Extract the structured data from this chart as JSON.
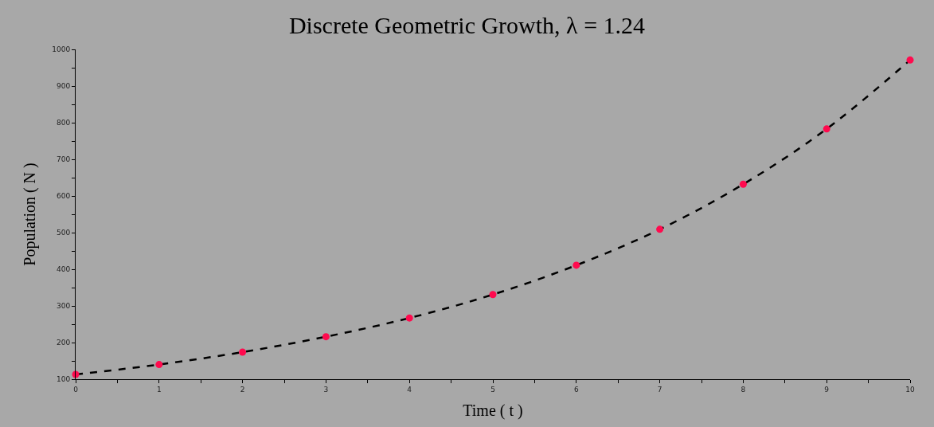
{
  "chart_data": {
    "type": "scatter",
    "title": "Discrete Geometric Growth, λ = 1.24",
    "xlabel": "Time ( t )",
    "ylabel": "Population ( N )",
    "x": [
      0,
      1,
      2,
      3,
      4,
      5,
      6,
      7,
      8,
      9,
      10
    ],
    "series": [
      {
        "type": "line",
        "color": "#000000",
        "line_style": "dashed",
        "values": [
          113,
          140,
          174,
          216,
          267,
          331,
          411,
          509,
          632,
          783,
          971
        ]
      },
      {
        "color": "#ff0a4e",
        "marker": "circle",
        "values": [
          113,
          140,
          174,
          216,
          267,
          331,
          411,
          509,
          632,
          783,
          971
        ]
      }
    ],
    "xlim": [
      0,
      10
    ],
    "ylim": [
      100,
      1000
    ],
    "xticks": [
      0,
      {
        "value": 0.5,
        "label": null
      },
      1,
      {
        "value": 1.5,
        "label": null
      },
      2,
      {
        "value": 2.5,
        "label": null
      },
      3,
      {
        "value": 3.5,
        "label": null
      },
      4,
      {
        "value": 4.5,
        "label": null
      },
      5,
      {
        "value": 5.5,
        "label": null
      },
      6,
      {
        "value": 6.5,
        "label": null
      },
      7,
      {
        "value": 7.5,
        "label": null
      },
      8,
      {
        "value": 8.5,
        "label": null
      },
      9,
      {
        "value": 9.5,
        "label": null
      },
      10
    ],
    "yticks": [
      100,
      {
        "value": 150,
        "label": null
      },
      200,
      {
        "value": 250,
        "label": null
      },
      300,
      {
        "value": 350,
        "label": null
      },
      400,
      {
        "value": 450,
        "label": null
      },
      500,
      {
        "value": 550,
        "label": null
      },
      600,
      {
        "value": 650,
        "label": null
      },
      700,
      {
        "value": 750,
        "label": null
      },
      800,
      {
        "value": 850,
        "label": null
      },
      900,
      {
        "value": 950,
        "label": null
      },
      1000
    ],
    "grid": false
  }
}
